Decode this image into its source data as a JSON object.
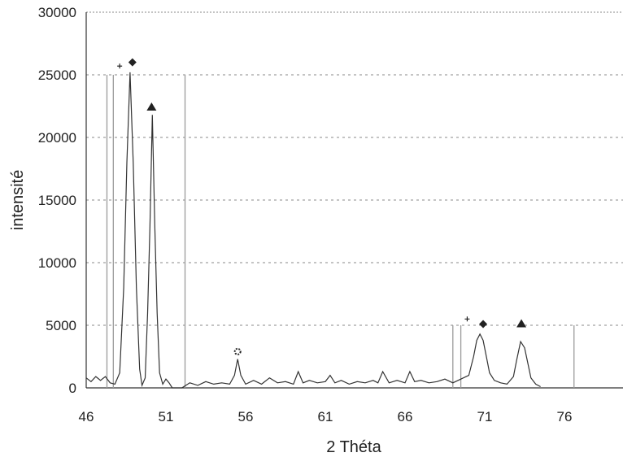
{
  "chart_data": {
    "type": "line",
    "xlabel": "2 Théta",
    "ylabel": "intensité",
    "xlim": [
      46,
      79
    ],
    "ylim": [
      0,
      30000
    ],
    "x_ticks": [
      "46",
      "51",
      "56",
      "61",
      "66",
      "71",
      "76"
    ],
    "y_ticks": [
      "0",
      "5000",
      "10000",
      "15000",
      "20000",
      "25000",
      "30000"
    ],
    "grid": "horizontal dashed at 5000, 10000, 15000, 20000, 25000",
    "series": [
      {
        "points": [
          [
            46.0,
            800
          ],
          [
            46.3,
            500
          ],
          [
            46.6,
            900
          ],
          [
            46.9,
            600
          ],
          [
            47.2,
            900
          ],
          [
            47.5,
            400
          ],
          [
            47.8,
            300
          ],
          [
            48.1,
            1200
          ],
          [
            48.35,
            8000
          ],
          [
            48.55,
            18000
          ],
          [
            48.75,
            25200
          ],
          [
            48.95,
            18000
          ],
          [
            49.15,
            8000
          ],
          [
            49.35,
            1500
          ],
          [
            49.5,
            200
          ],
          [
            49.7,
            800
          ],
          [
            49.85,
            6000
          ],
          [
            50.0,
            13000
          ],
          [
            50.15,
            21800
          ],
          [
            50.3,
            13000
          ],
          [
            50.45,
            6000
          ],
          [
            50.6,
            1200
          ],
          [
            50.8,
            300
          ],
          [
            51.0,
            700
          ],
          [
            51.2,
            400
          ],
          [
            51.4,
            0
          ],
          [
            52.0,
            0
          ],
          [
            52.5,
            400
          ],
          [
            53.0,
            200
          ],
          [
            53.5,
            500
          ],
          [
            54.0,
            300
          ],
          [
            54.5,
            400
          ],
          [
            55.0,
            300
          ],
          [
            55.3,
            1000
          ],
          [
            55.5,
            2300
          ],
          [
            55.7,
            1000
          ],
          [
            56.0,
            300
          ],
          [
            56.5,
            600
          ],
          [
            57.0,
            300
          ],
          [
            57.5,
            800
          ],
          [
            58.0,
            400
          ],
          [
            58.5,
            500
          ],
          [
            59.0,
            300
          ],
          [
            59.3,
            1300
          ],
          [
            59.6,
            400
          ],
          [
            60.0,
            600
          ],
          [
            60.5,
            400
          ],
          [
            61.0,
            500
          ],
          [
            61.3,
            1000
          ],
          [
            61.6,
            400
          ],
          [
            62.0,
            600
          ],
          [
            62.5,
            300
          ],
          [
            63.0,
            500
          ],
          [
            63.5,
            400
          ],
          [
            64.0,
            600
          ],
          [
            64.3,
            400
          ],
          [
            64.6,
            1300
          ],
          [
            65.0,
            400
          ],
          [
            65.5,
            600
          ],
          [
            66.0,
            400
          ],
          [
            66.3,
            1300
          ],
          [
            66.6,
            500
          ],
          [
            67.0,
            600
          ],
          [
            67.5,
            400
          ],
          [
            68.0,
            500
          ],
          [
            68.5,
            700
          ],
          [
            69.0,
            400
          ],
          [
            69.5,
            700
          ],
          [
            70.0,
            1000
          ],
          [
            70.3,
            2500
          ],
          [
            70.5,
            3800
          ],
          [
            70.7,
            4300
          ],
          [
            70.9,
            3800
          ],
          [
            71.1,
            2500
          ],
          [
            71.3,
            1200
          ],
          [
            71.6,
            600
          ],
          [
            72.0,
            400
          ],
          [
            72.4,
            300
          ],
          [
            72.8,
            900
          ],
          [
            73.0,
            2200
          ],
          [
            73.25,
            3700
          ],
          [
            73.5,
            3200
          ],
          [
            73.7,
            2000
          ],
          [
            73.9,
            800
          ],
          [
            74.2,
            300
          ],
          [
            74.5,
            100
          ]
        ]
      }
    ],
    "reference_lines": [
      {
        "x": 47.3,
        "intensity": 25000
      },
      {
        "x": 47.7,
        "intensity": 25000
      },
      {
        "x": 52.2,
        "intensity": 25000
      },
      {
        "x": 69.0,
        "intensity": 5000
      },
      {
        "x": 69.5,
        "intensity": 5000
      },
      {
        "x": 76.6,
        "intensity": 5000
      }
    ],
    "markers": [
      {
        "symbol": "diamond",
        "x": 48.9,
        "intensity": 26000
      },
      {
        "symbol": "triangle",
        "x": 50.1,
        "intensity": 22400
      },
      {
        "symbol": "plus",
        "x": 48.1,
        "intensity": 25700
      },
      {
        "symbol": "ring",
        "x": 55.5,
        "intensity": 2900
      },
      {
        "symbol": "plus",
        "x": 69.9,
        "intensity": 5500
      },
      {
        "symbol": "diamond",
        "x": 70.9,
        "intensity": 5100
      },
      {
        "symbol": "triangle",
        "x": 73.3,
        "intensity": 5100
      }
    ],
    "colors": {
      "line": "#333333",
      "grid": "#888888",
      "marker": "#222222",
      "ref_line": "#9a9a9a"
    }
  }
}
